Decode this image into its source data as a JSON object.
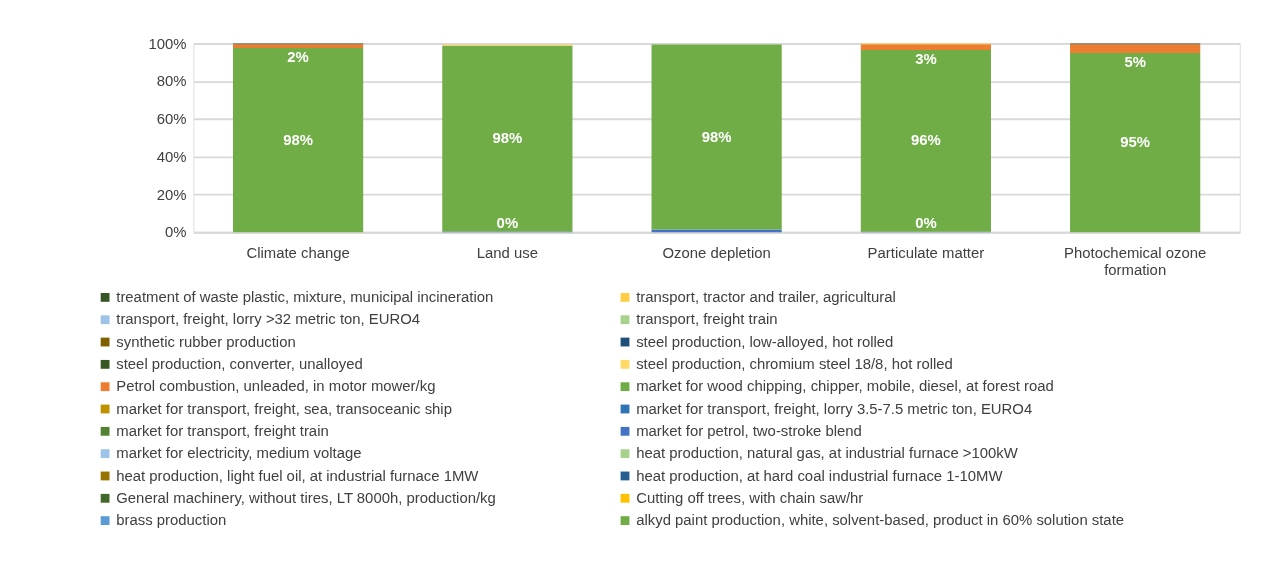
{
  "chart_data": {
    "type": "bar",
    "stacked": true,
    "categories": [
      "Climate change",
      "Land use",
      "Ozone depletion",
      "Particulate matter",
      "Photochemical ozone formation"
    ],
    "ylim": [
      0,
      100
    ],
    "yticks": [
      {
        "value": 0,
        "label": "0%"
      },
      {
        "value": 20,
        "label": "20%"
      },
      {
        "value": 40,
        "label": "40%"
      },
      {
        "value": 60,
        "label": "60%"
      },
      {
        "value": 80,
        "label": "80%"
      },
      {
        "value": 100,
        "label": "100%"
      }
    ],
    "grid": "y",
    "legend": "bottom",
    "series": [
      {
        "name": "alkyd paint production, white, solvent-based, product in 60% solution state",
        "color": "#70ad47",
        "values": [
          0,
          0,
          0,
          0,
          0
        ]
      },
      {
        "name": "brass production",
        "color": "#5b9bd5",
        "values": [
          0,
          0,
          0,
          0,
          0
        ]
      },
      {
        "name": "Cutting off trees, with chain saw/hr",
        "color": "#ffc000",
        "values": [
          0,
          0,
          0,
          0,
          0
        ]
      },
      {
        "name": "General machinery, without tires, LT 8000h, production/kg",
        "color": "#43682b",
        "values": [
          0,
          0,
          0,
          0,
          0
        ]
      },
      {
        "name": "heat production, at hard coal industrial furnace 1-10MW",
        "color": "#255e91",
        "values": [
          0,
          0,
          0,
          0,
          0
        ]
      },
      {
        "name": "heat production, light fuel oil, at industrial furnace 1MW",
        "color": "#997300",
        "values": [
          0,
          0,
          0,
          0,
          0
        ]
      },
      {
        "name": "heat production, natural gas, at industrial furnace >100kW",
        "color": "#a9d18e",
        "values": [
          0,
          0,
          0,
          0,
          0
        ]
      },
      {
        "name": "market for electricity, medium voltage",
        "color": "#9dc3e6",
        "values": [
          0,
          0,
          0,
          0,
          0
        ]
      },
      {
        "name": "market for petrol, two-stroke blend",
        "color": "#4472c4",
        "values": [
          0,
          0.4,
          1.5,
          0.3,
          0
        ],
        "value_labels": [
          null,
          "0%",
          null,
          "0%",
          null
        ]
      },
      {
        "name": "market for transport, freight train",
        "color": "#548235",
        "values": [
          0,
          0,
          0,
          0,
          0
        ]
      },
      {
        "name": "market for transport, freight, lorry 3.5-7.5 metric ton, EURO4",
        "color": "#2e75b6",
        "values": [
          0,
          0,
          0,
          0,
          0
        ]
      },
      {
        "name": "market for transport, freight, sea, transoceanic ship",
        "color": "#bf9000",
        "values": [
          0,
          0,
          0,
          0,
          0
        ]
      },
      {
        "name": "market for wood chipping, chipper, mobile, diesel, at forest road",
        "color": "#70ad47",
        "values": [
          97.6,
          98.4,
          98.0,
          96.3,
          95.0
        ],
        "value_labels": [
          "98%",
          "98%",
          "98%",
          "96%",
          "95%"
        ]
      },
      {
        "name": "Petrol combustion, unleaded, in motor mower/kg",
        "color": "#ed7d31",
        "values": [
          2.0,
          0,
          0,
          3.0,
          4.6
        ],
        "value_labels": [
          "2%",
          null,
          null,
          "3%",
          "5%"
        ]
      },
      {
        "name": "steel production, chromium steel 18/8, hot rolled",
        "color": "#ffd966",
        "values": [
          0,
          0,
          0,
          0,
          0
        ]
      },
      {
        "name": "steel production, converter, unalloyed",
        "color": "#375623",
        "values": [
          0,
          0,
          0,
          0,
          0
        ]
      },
      {
        "name": "steel production, low-alloyed, hot rolled",
        "color": "#1f4e79",
        "values": [
          0,
          0,
          0,
          0,
          0
        ]
      },
      {
        "name": "synthetic rubber production",
        "color": "#7f6000",
        "values": [
          0,
          0,
          0,
          0,
          0
        ]
      },
      {
        "name": "transport, freight train",
        "color": "#a9d18e",
        "values": [
          0,
          0,
          0,
          0,
          0
        ]
      },
      {
        "name": "transport, freight, lorry >32 metric ton, EURO4",
        "color": "#9dc3e6",
        "values": [
          0,
          0,
          0,
          0,
          0
        ]
      },
      {
        "name": "transport, tractor and trailer, agricultural",
        "color": "#ffcc44",
        "values": [
          0,
          0.5,
          0,
          0.4,
          0
        ]
      },
      {
        "name": "treatment of waste plastic, mixture, municipal incineration",
        "color": "#375623",
        "values": [
          0.4,
          0,
          0,
          0,
          0.4
        ]
      }
    ]
  }
}
